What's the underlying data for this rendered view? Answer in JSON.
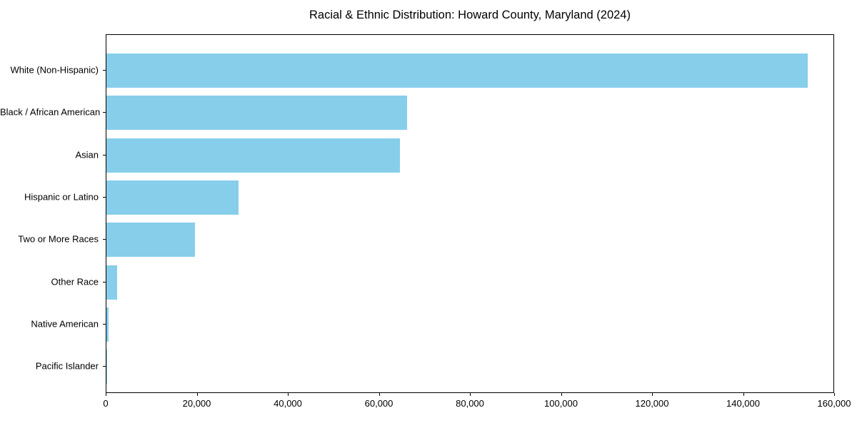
{
  "title": "Racial & Ethnic Distribution: Howard County, Maryland (2024)",
  "colors": {
    "bar": "#87CEEB",
    "axis": "#000000",
    "text": "#000000",
    "background": "#ffffff"
  },
  "chart_data": {
    "type": "bar",
    "orientation": "horizontal",
    "title": "Racial & Ethnic Distribution: Howard County, Maryland (2024)",
    "categories": [
      "White (Non-Hispanic)",
      "Black / African American",
      "Asian",
      "Hispanic or Latino",
      "Two or More Races",
      "Other Race",
      "Native American",
      "Pacific Islander"
    ],
    "values": [
      154000,
      66000,
      64500,
      29000,
      19400,
      2400,
      400,
      100
    ],
    "xlabel": "",
    "ylabel": "",
    "xlim": [
      0,
      160000
    ],
    "xticks": [
      0,
      20000,
      40000,
      60000,
      80000,
      100000,
      120000,
      140000,
      160000
    ],
    "xtick_labels": [
      "0",
      "20,000",
      "40,000",
      "60,000",
      "80,000",
      "100,000",
      "120,000",
      "140,000",
      "160,000"
    ],
    "grid": false,
    "legend": null
  }
}
